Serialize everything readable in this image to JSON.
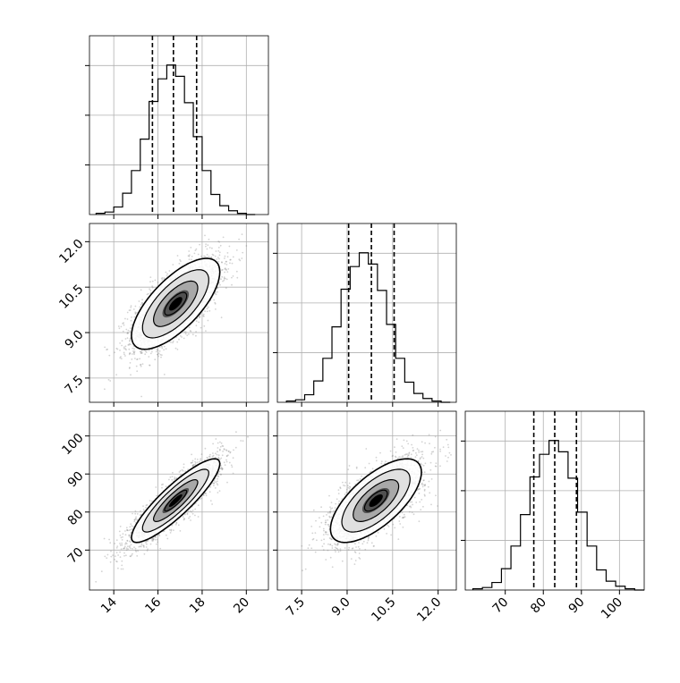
{
  "chart_data": {
    "type": "corner",
    "parameters": [
      {
        "range": [
          12.9,
          21.0
        ],
        "ticks": [
          14,
          16,
          18,
          20
        ],
        "tick_labels": [
          "14",
          "16",
          "18",
          "20"
        ],
        "quantiles": [
          15.75,
          16.7,
          17.75
        ],
        "hist": {
          "bins": [
            13.2,
            13.6,
            14.0,
            14.4,
            14.8,
            15.2,
            15.6,
            16.0,
            16.4,
            16.8,
            17.2,
            17.6,
            18.0,
            18.4,
            18.8,
            19.2,
            19.6,
            20.0,
            20.4
          ],
          "counts": [
            1,
            2,
            6,
            17,
            35,
            60,
            90,
            108,
            119,
            110,
            89,
            62,
            35,
            16,
            7,
            3,
            1,
            0
          ]
        }
      },
      {
        "range": [
          6.7,
          12.6
        ],
        "ticks": [
          7.5,
          9.0,
          10.5,
          12.0
        ],
        "tick_labels": [
          "7.5",
          "9.0",
          "10.5",
          "12.0"
        ],
        "quantiles": [
          9.05,
          9.8,
          10.55
        ],
        "hist": {
          "bins": [
            7.0,
            7.3,
            7.6,
            7.9,
            8.2,
            8.5,
            8.8,
            9.1,
            9.4,
            9.7,
            10.0,
            10.3,
            10.6,
            10.9,
            11.2,
            11.5,
            11.8,
            12.1,
            12.4
          ],
          "counts": [
            1,
            2,
            6,
            17,
            35,
            60,
            90,
            108,
            119,
            110,
            89,
            62,
            35,
            16,
            7,
            3,
            1,
            0
          ]
        }
      },
      {
        "range": [
          59.5,
          106.5
        ],
        "ticks": [
          70,
          80,
          90,
          100
        ],
        "tick_labels": [
          "70",
          "80",
          "90",
          "100"
        ],
        "quantiles": [
          77.5,
          83.0,
          88.7
        ],
        "hist": {
          "bins": [
            61.5,
            64.0,
            66.5,
            69.0,
            71.5,
            74.0,
            76.5,
            79.0,
            81.5,
            84.0,
            86.5,
            89.0,
            91.5,
            94.0,
            96.5,
            99.0,
            101.5,
            104.0,
            106.5
          ],
          "counts": [
            1,
            2,
            6,
            17,
            35,
            60,
            90,
            108,
            119,
            110,
            89,
            62,
            35,
            16,
            7,
            3,
            1,
            0
          ]
        }
      }
    ],
    "pairs": [
      {
        "x_param": 0,
        "y_param": 1,
        "center": [
          16.8,
          9.95
        ],
        "sd": [
          1.0,
          0.75
        ],
        "corr": 0.7
      },
      {
        "x_param": 0,
        "y_param": 2,
        "center": [
          16.8,
          83.0
        ],
        "sd": [
          1.0,
          5.5
        ],
        "corr": 0.88
      },
      {
        "x_param": 1,
        "y_param": 2,
        "center": [
          9.95,
          83.0
        ],
        "sd": [
          0.75,
          5.5
        ],
        "corr": 0.68
      }
    ],
    "contour_levels_sigma": [
      0.5,
      1.0,
      1.5,
      2.0
    ],
    "colors": {
      "line": "#000000",
      "grid": "#b0b0b0",
      "scatter": "#808080"
    },
    "grid": true
  }
}
